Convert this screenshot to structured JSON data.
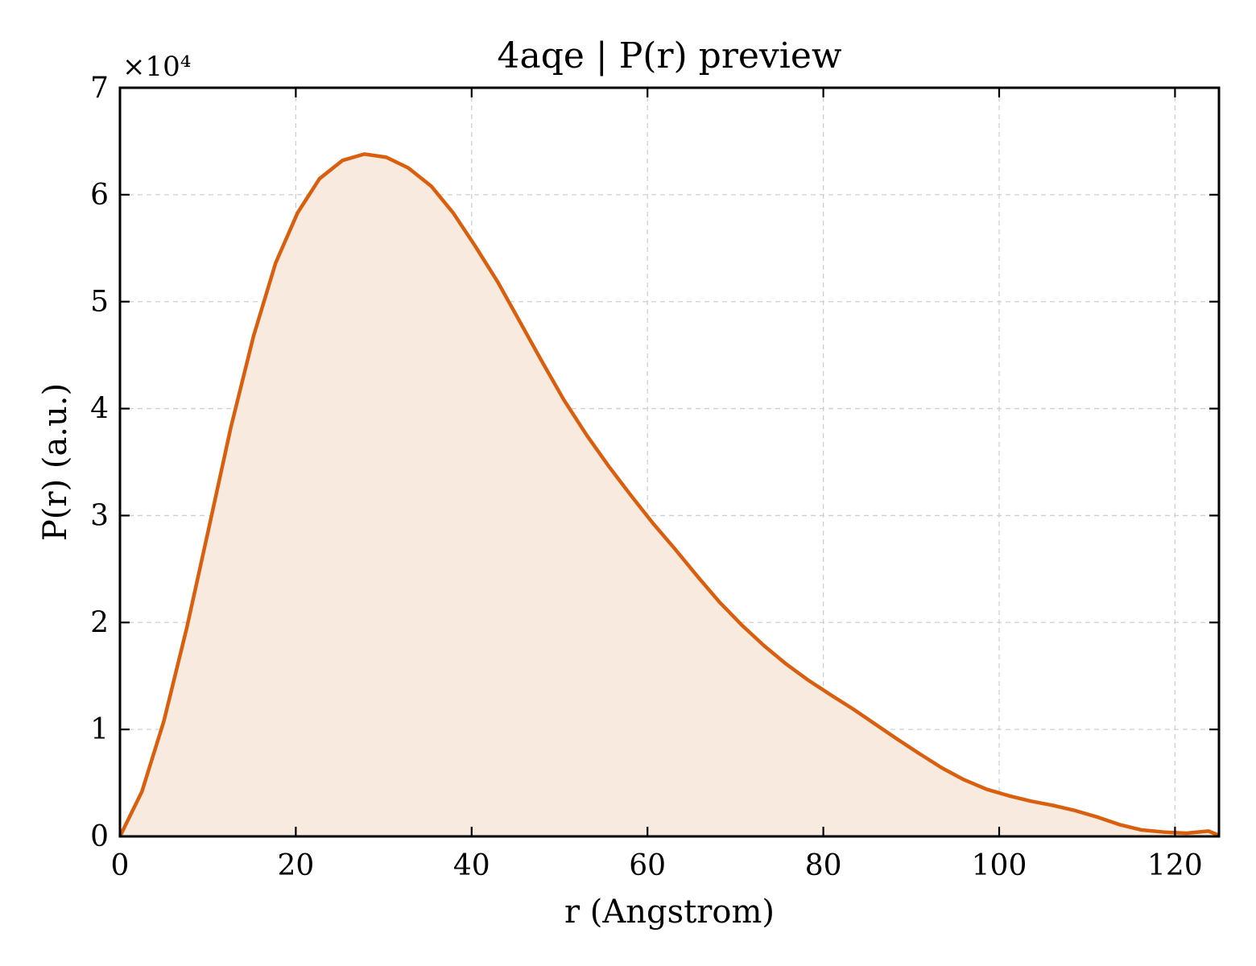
{
  "chart_data": {
    "type": "area",
    "title": "4aqe | P(r) preview",
    "xlabel": "r (Angstrom)",
    "ylabel": "P(r) (a.u.)",
    "y_scale_label": "×10⁴",
    "xlim": [
      0,
      125
    ],
    "ylim": [
      0,
      70000
    ],
    "xticks": [
      "0",
      "20",
      "40",
      "60",
      "80",
      "100",
      "120"
    ],
    "yticks": [
      "0",
      "1",
      "2",
      "3",
      "4",
      "5",
      "6",
      "7"
    ],
    "grid": true,
    "line_color": "#d95f0e",
    "fill_color": "#f9eadf",
    "series": [
      {
        "x": [
          0,
          2.5,
          5,
          7.6,
          10.1,
          12.6,
          15.2,
          17.7,
          20.2,
          22.7,
          25.3,
          27.8,
          30.3,
          32.8,
          35.4,
          37.9,
          40.4,
          43,
          45.5,
          48,
          50.5,
          53.1,
          55.6,
          58.1,
          60.6,
          63.2,
          65.7,
          68.2,
          70.8,
          73.3,
          75.8,
          78.3,
          80.9,
          83.4,
          85.9,
          88.4,
          91,
          93.5,
          96,
          98.6,
          101.1,
          103.6,
          106.1,
          108.7,
          111.2,
          113.7,
          116.2,
          118.8,
          121.3,
          123.8,
          125
        ],
        "y": [
          0,
          4200,
          10800,
          19500,
          28800,
          38200,
          46800,
          53600,
          58300,
          61500,
          63200,
          63800,
          63500,
          62500,
          60800,
          58300,
          55200,
          51800,
          48100,
          44400,
          40800,
          37500,
          34600,
          31900,
          29300,
          26800,
          24300,
          21900,
          19700,
          17800,
          16100,
          14600,
          13200,
          11900,
          10500,
          9100,
          7700,
          6400,
          5300,
          4400,
          3800,
          3300,
          2900,
          2400,
          1800,
          1100,
          600,
          400,
          300,
          500,
          100
        ]
      }
    ]
  }
}
